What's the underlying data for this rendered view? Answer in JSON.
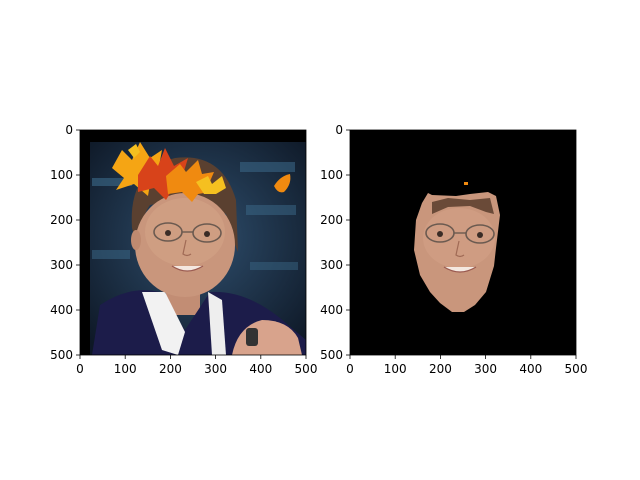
{
  "chart_data": [
    {
      "type": "image",
      "content": "photo of a smiling woman with glasses, autumn maple-leaf overlay on hair",
      "xlim": [
        0,
        500
      ],
      "ylim": [
        500,
        0
      ],
      "x_ticks": [
        "0",
        "100",
        "200",
        "300",
        "400",
        "500"
      ],
      "y_ticks": [
        "0",
        "100",
        "200",
        "300",
        "400",
        "500"
      ],
      "image_extent_x": [
        0,
        500
      ],
      "image_extent_y": [
        0,
        500
      ]
    },
    {
      "type": "image",
      "content": "segmented face on black background",
      "xlim": [
        0,
        500
      ],
      "ylim": [
        500,
        0
      ],
      "x_ticks": [
        "0",
        "100",
        "200",
        "300",
        "400",
        "500"
      ],
      "y_ticks": [
        "0",
        "100",
        "200",
        "300",
        "400",
        "500"
      ],
      "image_extent_x": [
        0,
        500
      ],
      "image_extent_y": [
        0,
        500
      ]
    }
  ],
  "colors": {
    "mask_background": "#000000",
    "skin": "#c9967c",
    "leaf_orange": "#f08a10",
    "leaf_yellow": "#f5c020",
    "leaf_red": "#d8431a",
    "jacket": "#1c1c4a",
    "backdrop": "#1e3a58"
  }
}
